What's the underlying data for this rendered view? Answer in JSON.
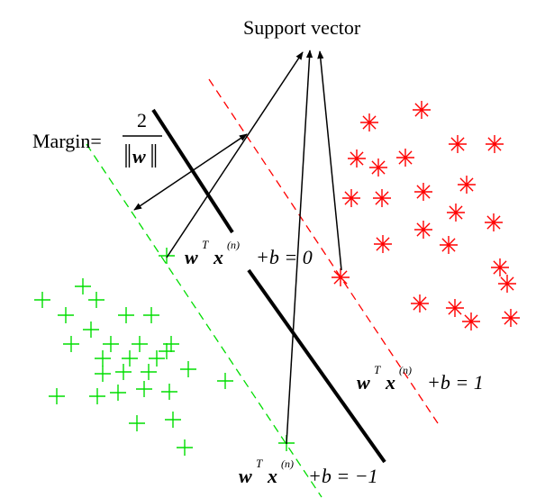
{
  "labels": {
    "support_vector": "Support vector",
    "margin_prefix": "Margin=",
    "margin_numerator": "2",
    "margin_w": "w",
    "eq_w": "w",
    "eq_T": "T",
    "eq_x": "x",
    "eq_n": "(n)",
    "eq_center_rhs": "+b = 0",
    "eq_pos_rhs": "+b = 1",
    "eq_neg_rhs": "+b = −1"
  },
  "colors": {
    "positive_class": "#ff0000",
    "negative_class": "#00dd00",
    "hyperplane": "#000000",
    "arrows": "#000000"
  },
  "markers": {
    "positive_class": "asterisk",
    "negative_class": "plus"
  }
}
